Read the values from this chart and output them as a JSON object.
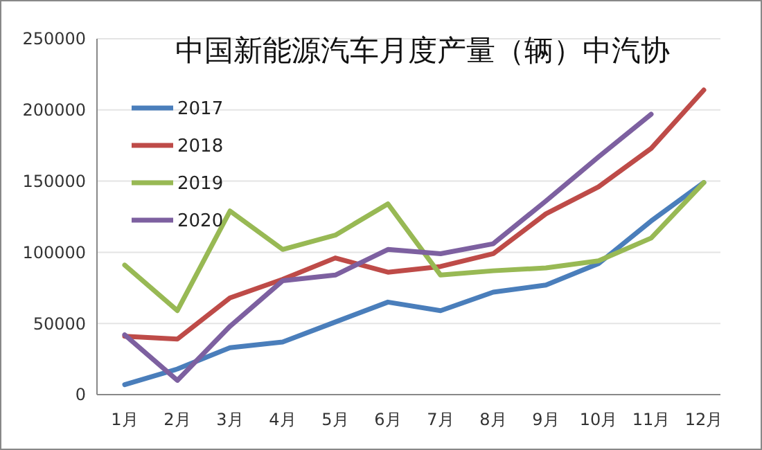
{
  "chart_data": {
    "type": "line",
    "title": "中国新能源汽车月度产量（辆）中汽协",
    "categories": [
      "1月",
      "2月",
      "3月",
      "4月",
      "5月",
      "6月",
      "7月",
      "8月",
      "9月",
      "10月",
      "11月",
      "12月"
    ],
    "series": [
      {
        "name": "2017",
        "color": "#4a7ebb",
        "values": [
          7000,
          18000,
          33000,
          37000,
          51000,
          65000,
          59000,
          72000,
          77000,
          92000,
          122000,
          149000
        ]
      },
      {
        "name": "2018",
        "color": "#be4b48",
        "values": [
          41000,
          39000,
          68000,
          81000,
          96000,
          86000,
          90000,
          99000,
          127000,
          146000,
          173000,
          214000
        ]
      },
      {
        "name": "2019",
        "color": "#98b954",
        "values": [
          91000,
          59000,
          129000,
          102000,
          112000,
          134000,
          84000,
          87000,
          89000,
          94000,
          110000,
          149000
        ]
      },
      {
        "name": "2020",
        "color": "#7d60a0",
        "values": [
          42000,
          10000,
          48000,
          80000,
          84000,
          102000,
          99000,
          106000,
          136000,
          167000,
          197000,
          null
        ]
      }
    ],
    "ylim": [
      0,
      250000
    ],
    "yticks": [
      0,
      50000,
      100000,
      150000,
      200000,
      250000
    ],
    "grid": "y",
    "legend": "top left",
    "line_style": "solid"
  }
}
